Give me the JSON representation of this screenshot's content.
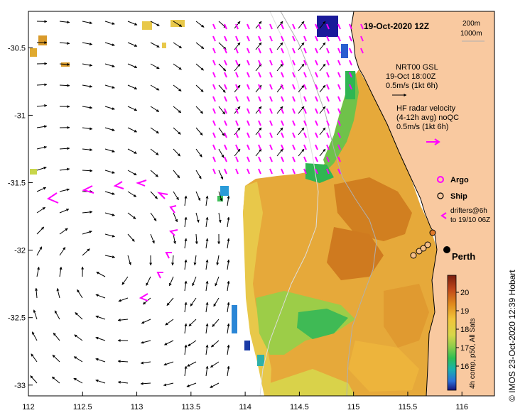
{
  "map": {
    "title": "19-Oct-2020 12Z",
    "isobath_legend": [
      "200m",
      "1000m"
    ],
    "model_legend": {
      "line1": "NRT00 GSL",
      "line2": "19-Oct 18:00Z",
      "line3": "0.5m/s (1kt 6h)"
    },
    "radar_legend": {
      "line1": "HF radar velocity",
      "line2": "(4-12h avg) noQC",
      "line3": "0.5m/s (1kt 6h)"
    },
    "argo_label": "Argo",
    "ship_label": "Ship",
    "drifters_line1": "drifters@6h",
    "drifters_line2": "to 19/10 06Z",
    "city_label": "Perth",
    "colorbar_caption": "4h comp, p50, All Sats",
    "colorbar_ticks": [
      "20",
      "19",
      "18",
      "17",
      "16"
    ],
    "credit": "© IMOS 23-Oct-2020 12:39 Hobart",
    "x_ticks": [
      "112",
      "112.5",
      "113",
      "113.5",
      "114",
      "114.5",
      "115",
      "115.5",
      "116"
    ],
    "y_ticks": [
      "-30.5",
      "-31",
      "-31.5",
      "-32",
      "-32.5",
      "-33"
    ],
    "colors": {
      "land": "#f9c9a0",
      "model_arrow": "#000000",
      "radar_arrow": "#ff00ff",
      "coast": "#000000",
      "isobath": "#b0b0b0"
    }
  }
}
